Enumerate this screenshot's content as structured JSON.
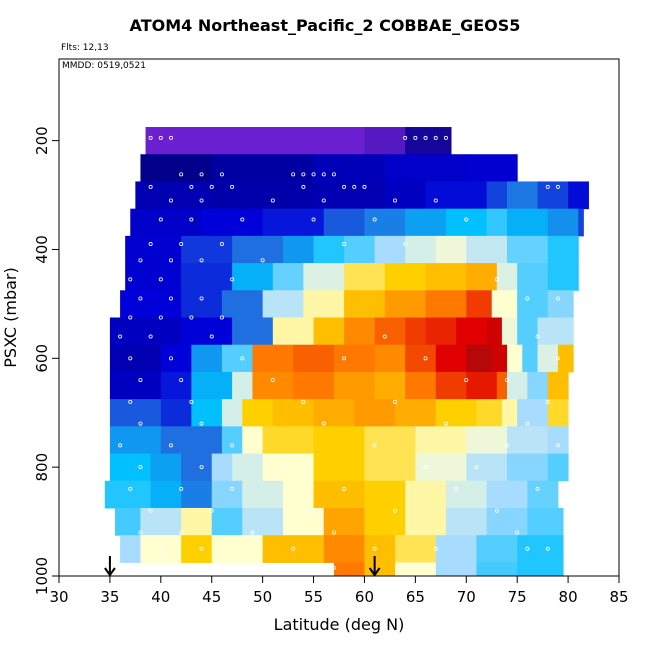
{
  "title": "ATOM4 Northeast_Pacific_2 COBBAE_GEOS5",
  "notes": {
    "flights": "Flts: 12,13",
    "dates": "MMDD: 0519,0521"
  },
  "chart_data": {
    "type": "heatmap",
    "xlabel": "Latitude (deg N)",
    "ylabel": "PSXC (mbar)",
    "xlim": [
      30,
      85
    ],
    "ylim": [
      1000,
      50
    ],
    "y_reversed": true,
    "xticks": [
      30,
      35,
      40,
      45,
      50,
      55,
      60,
      65,
      70,
      75,
      80,
      85
    ],
    "yticks": [
      200,
      400,
      600,
      800,
      1000
    ],
    "grid": false,
    "legend": "none",
    "colormap": [
      "#6a1fd0",
      "#00008b",
      "#0000d8",
      "#1f6fe0",
      "#00c0ff",
      "#a8dcff",
      "#ffffd0",
      "#ffd000",
      "#ff7800",
      "#e00000",
      "#8b1010"
    ],
    "cell_height_mbar": 50,
    "rows": [
      {
        "p": 200,
        "cells": [
          [
            38.5,
            0.0
          ],
          [
            60,
            0.02
          ],
          [
            64,
            0.08
          ],
          [
            68.5,
            null
          ]
        ]
      },
      {
        "p": 250,
        "cells": [
          [
            38.0,
            0.1
          ],
          [
            45,
            0.13
          ],
          [
            55,
            0.16
          ],
          [
            62,
            0.18
          ],
          [
            70,
            0.19
          ],
          [
            75,
            null
          ]
        ]
      },
      {
        "p": 300,
        "cells": [
          [
            37.5,
            0.15
          ],
          [
            45,
            0.14
          ],
          [
            55,
            0.15
          ],
          [
            62,
            0.17
          ],
          [
            66,
            0.21
          ],
          [
            72,
            0.26
          ],
          [
            74,
            0.31
          ],
          [
            77,
            0.26
          ],
          [
            80,
            0.21
          ],
          [
            82,
            null
          ]
        ]
      },
      {
        "p": 350,
        "cells": [
          [
            37.0,
            0.18
          ],
          [
            44,
            0.2
          ],
          [
            50,
            0.22
          ],
          [
            56,
            0.28
          ],
          [
            60,
            0.32
          ],
          [
            64,
            0.36
          ],
          [
            68,
            0.4
          ],
          [
            72,
            0.43
          ],
          [
            74,
            0.38
          ],
          [
            78,
            0.34
          ],
          [
            81,
            0.26
          ],
          [
            81.5,
            null
          ]
        ]
      },
      {
        "p": 400,
        "cells": [
          [
            36.5,
            0.19
          ],
          [
            42,
            0.25
          ],
          [
            47,
            0.3
          ],
          [
            52,
            0.35
          ],
          [
            55,
            0.42
          ],
          [
            58,
            0.45
          ],
          [
            61,
            0.5
          ],
          [
            64,
            0.55
          ],
          [
            67,
            0.58
          ],
          [
            70,
            0.53
          ],
          [
            74,
            0.46
          ],
          [
            78,
            0.42
          ],
          [
            81,
            null
          ]
        ]
      },
      {
        "p": 450,
        "cells": [
          [
            36.5,
            0.19
          ],
          [
            42,
            0.24
          ],
          [
            47,
            0.38
          ],
          [
            51,
            0.46
          ],
          [
            54,
            0.56
          ],
          [
            58,
            0.66
          ],
          [
            62,
            0.7
          ],
          [
            66,
            0.72
          ],
          [
            70,
            0.74
          ],
          [
            73,
            0.56
          ],
          [
            75,
            0.45
          ],
          [
            78,
            0.42
          ],
          [
            81,
            null
          ]
        ]
      },
      {
        "p": 500,
        "cells": [
          [
            36.0,
            0.2
          ],
          [
            42,
            0.24
          ],
          [
            46,
            0.3
          ],
          [
            50,
            0.52
          ],
          [
            54,
            0.62
          ],
          [
            58,
            0.72
          ],
          [
            62,
            0.76
          ],
          [
            66,
            0.8
          ],
          [
            70,
            0.85
          ],
          [
            72.5,
            0.6
          ],
          [
            75,
            0.45
          ],
          [
            78,
            0.48
          ],
          [
            80.5,
            null
          ]
        ]
      },
      {
        "p": 550,
        "cells": [
          [
            35.0,
            0.17
          ],
          [
            42,
            0.2
          ],
          [
            47,
            0.3
          ],
          [
            51,
            0.62
          ],
          [
            55,
            0.72
          ],
          [
            58,
            0.78
          ],
          [
            61,
            0.82
          ],
          [
            64,
            0.85
          ],
          [
            66,
            0.87
          ],
          [
            69,
            0.9
          ],
          [
            72,
            0.92
          ],
          [
            73.5,
            0.58
          ],
          [
            75,
            0.45
          ],
          [
            77,
            0.52
          ],
          [
            80.5,
            null
          ]
        ]
      },
      {
        "p": 600,
        "cells": [
          [
            35.0,
            0.15
          ],
          [
            40,
            0.2
          ],
          [
            43,
            0.35
          ],
          [
            46,
            0.45
          ],
          [
            49,
            0.8
          ],
          [
            53,
            0.82
          ],
          [
            57,
            0.8
          ],
          [
            61,
            0.78
          ],
          [
            64,
            0.84
          ],
          [
            67,
            0.9
          ],
          [
            70,
            0.95
          ],
          [
            72.5,
            0.92
          ],
          [
            74,
            0.6
          ],
          [
            75.5,
            0.45
          ],
          [
            77,
            0.56
          ],
          [
            79,
            0.72
          ],
          [
            80.5,
            null
          ]
        ]
      },
      {
        "p": 650,
        "cells": [
          [
            35.0,
            0.17
          ],
          [
            40,
            0.22
          ],
          [
            43,
            0.38
          ],
          [
            47,
            0.55
          ],
          [
            49,
            0.78
          ],
          [
            53,
            0.8
          ],
          [
            57,
            0.76
          ],
          [
            61,
            0.74
          ],
          [
            64,
            0.8
          ],
          [
            67,
            0.85
          ],
          [
            70,
            0.88
          ],
          [
            73,
            0.82
          ],
          [
            74,
            0.55
          ],
          [
            76,
            0.48
          ],
          [
            78,
            0.72
          ],
          [
            80,
            null
          ]
        ]
      },
      {
        "p": 700,
        "cells": [
          [
            35.0,
            0.28
          ],
          [
            40,
            0.24
          ],
          [
            43,
            0.4
          ],
          [
            46,
            0.55
          ],
          [
            48,
            0.7
          ],
          [
            51,
            0.72
          ],
          [
            55,
            0.74
          ],
          [
            59,
            0.76
          ],
          [
            63,
            0.74
          ],
          [
            67,
            0.7
          ],
          [
            71,
            0.68
          ],
          [
            73.5,
            0.62
          ],
          [
            75,
            0.5
          ],
          [
            78,
            0.68
          ],
          [
            80,
            null
          ]
        ]
      },
      {
        "p": 750,
        "cells": [
          [
            35.0,
            0.35
          ],
          [
            40,
            0.3
          ],
          [
            43,
            0.3
          ],
          [
            46,
            0.45
          ],
          [
            48,
            0.6
          ],
          [
            50,
            0.68
          ],
          [
            55,
            0.7
          ],
          [
            60,
            0.66
          ],
          [
            65,
            0.62
          ],
          [
            70,
            0.58
          ],
          [
            74,
            0.52
          ],
          [
            78,
            0.5
          ],
          [
            80,
            null
          ]
        ]
      },
      {
        "p": 800,
        "cells": [
          [
            35.0,
            0.4
          ],
          [
            39,
            0.36
          ],
          [
            42,
            0.3
          ],
          [
            45,
            0.5
          ],
          [
            47,
            0.55
          ],
          [
            50,
            0.6
          ],
          [
            55,
            0.7
          ],
          [
            60,
            0.66
          ],
          [
            65,
            0.58
          ],
          [
            70,
            0.52
          ],
          [
            74,
            0.48
          ],
          [
            78,
            0.45
          ],
          [
            80,
            null
          ]
        ]
      },
      {
        "p": 850,
        "cells": [
          [
            34.5,
            0.42
          ],
          [
            39,
            0.38
          ],
          [
            42,
            0.32
          ],
          [
            45,
            0.48
          ],
          [
            48,
            0.55
          ],
          [
            52,
            0.6
          ],
          [
            55,
            0.72
          ],
          [
            60,
            0.7
          ],
          [
            64,
            0.62
          ],
          [
            68,
            0.55
          ],
          [
            72,
            0.5
          ],
          [
            76,
            0.46
          ],
          [
            79,
            null
          ]
        ]
      },
      {
        "p": 900,
        "cells": [
          [
            35.5,
            0.44
          ],
          [
            38,
            0.52
          ],
          [
            42,
            0.62
          ],
          [
            45,
            0.45
          ],
          [
            48,
            0.52
          ],
          [
            52,
            0.6
          ],
          [
            56,
            0.75
          ],
          [
            60,
            0.7
          ],
          [
            64,
            0.62
          ],
          [
            68,
            0.52
          ],
          [
            72,
            0.48
          ],
          [
            76,
            0.45
          ],
          [
            79.5,
            null
          ]
        ]
      },
      {
        "p": 950,
        "cells": [
          [
            36.0,
            0.5
          ],
          [
            38,
            0.6
          ],
          [
            42,
            0.7
          ],
          [
            45,
            0.6
          ],
          [
            50,
            0.72
          ],
          [
            56,
            0.78
          ],
          [
            60,
            0.72
          ],
          [
            63,
            0.66
          ],
          [
            67,
            0.5
          ],
          [
            71,
            0.45
          ],
          [
            75,
            0.42
          ],
          [
            79.5,
            null
          ]
        ]
      },
      {
        "p": 1000,
        "cells": [
          [
            57.0,
            0.8
          ],
          [
            60,
            0.72
          ],
          [
            63,
            0.6
          ],
          [
            67,
            0.5
          ],
          [
            71,
            0.44
          ],
          [
            75,
            0.42
          ],
          [
            79.5,
            null
          ]
        ]
      }
    ],
    "points": [
      [
        39,
        195
      ],
      [
        40,
        195
      ],
      [
        41,
        195
      ],
      [
        64,
        195
      ],
      [
        65,
        195
      ],
      [
        66,
        195
      ],
      [
        67,
        195
      ],
      [
        68,
        195
      ],
      [
        69,
        195
      ],
      [
        42,
        262
      ],
      [
        44,
        262
      ],
      [
        46,
        262
      ],
      [
        53,
        262
      ],
      [
        54,
        262
      ],
      [
        55,
        262
      ],
      [
        56,
        262
      ],
      [
        57,
        262
      ],
      [
        39,
        285
      ],
      [
        43,
        285
      ],
      [
        45,
        285
      ],
      [
        47,
        285
      ],
      [
        54,
        285
      ],
      [
        58,
        285
      ],
      [
        59,
        285
      ],
      [
        60,
        285
      ],
      [
        78,
        285
      ],
      [
        79,
        285
      ],
      [
        41,
        310
      ],
      [
        44,
        310
      ],
      [
        51,
        310
      ],
      [
        56,
        310
      ],
      [
        63,
        310
      ],
      [
        67,
        310
      ],
      [
        40,
        345
      ],
      [
        43,
        345
      ],
      [
        48,
        345
      ],
      [
        55,
        345
      ],
      [
        61,
        345
      ],
      [
        70,
        345
      ],
      [
        39,
        390
      ],
      [
        42,
        390
      ],
      [
        46,
        390
      ],
      [
        58,
        390
      ],
      [
        64,
        390
      ],
      [
        38,
        420
      ],
      [
        41,
        420
      ],
      [
        44,
        420
      ],
      [
        50,
        420
      ],
      [
        37,
        455
      ],
      [
        40,
        455
      ],
      [
        47,
        455
      ],
      [
        73,
        455
      ],
      [
        38,
        490
      ],
      [
        41,
        490
      ],
      [
        44,
        490
      ],
      [
        76,
        490
      ],
      [
        79,
        490
      ],
      [
        37,
        525
      ],
      [
        40,
        525
      ],
      [
        43,
        525
      ],
      [
        46,
        525
      ],
      [
        36,
        560
      ],
      [
        39,
        560
      ],
      [
        45,
        560
      ],
      [
        62,
        560
      ],
      [
        77,
        560
      ],
      [
        37,
        600
      ],
      [
        41,
        600
      ],
      [
        48,
        600
      ],
      [
        58,
        600
      ],
      [
        66,
        600
      ],
      [
        75,
        600
      ],
      [
        79,
        600
      ],
      [
        38,
        640
      ],
      [
        42,
        640
      ],
      [
        51,
        640
      ],
      [
        70,
        640
      ],
      [
        74,
        640
      ],
      [
        37,
        680
      ],
      [
        43,
        680
      ],
      [
        54,
        680
      ],
      [
        63,
        680
      ],
      [
        78,
        680
      ],
      [
        38,
        720
      ],
      [
        44,
        720
      ],
      [
        56,
        720
      ],
      [
        68,
        720
      ],
      [
        76,
        720
      ],
      [
        36,
        760
      ],
      [
        41,
        760
      ],
      [
        47,
        760
      ],
      [
        61,
        760
      ],
      [
        74,
        760
      ],
      [
        79,
        760
      ],
      [
        38,
        800
      ],
      [
        44,
        800
      ],
      [
        52,
        800
      ],
      [
        66,
        800
      ],
      [
        71,
        800
      ],
      [
        37,
        840
      ],
      [
        42,
        840
      ],
      [
        47,
        840
      ],
      [
        58,
        840
      ],
      [
        69,
        840
      ],
      [
        77,
        840
      ],
      [
        39,
        880
      ],
      [
        45,
        880
      ],
      [
        55,
        880
      ],
      [
        63,
        880
      ],
      [
        73,
        880
      ],
      [
        38,
        920
      ],
      [
        42,
        920
      ],
      [
        49,
        920
      ],
      [
        57,
        920
      ],
      [
        75,
        920
      ],
      [
        40,
        950
      ],
      [
        44,
        950
      ],
      [
        53,
        950
      ],
      [
        61,
        950
      ],
      [
        67,
        950
      ],
      [
        76,
        950
      ],
      [
        78,
        950
      ],
      [
        57,
        985
      ]
    ],
    "arrows": [
      35,
      61
    ]
  }
}
